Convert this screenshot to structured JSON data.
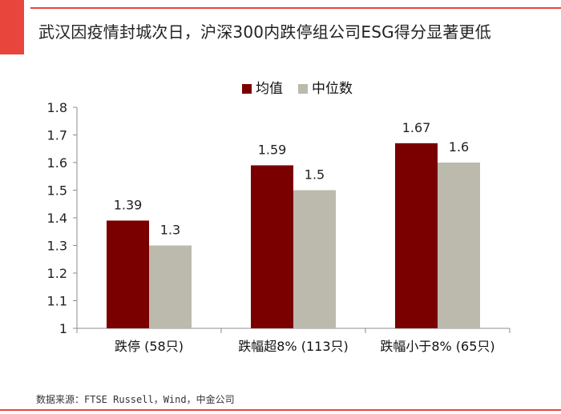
{
  "header": {
    "title": "武汉因疫情封城次日，沪深300内跌停组公司ESG得分显著更低"
  },
  "footer": {
    "source": "数据来源：FTSE Russell，Wind，中金公司"
  },
  "colors": {
    "accent": "#e8453c",
    "series_mean": "#7a0000",
    "series_median": "#bcb9ad"
  },
  "chart_data": {
    "type": "bar",
    "title": "",
    "xlabel": "",
    "ylabel": "",
    "categories": [
      "跌停 (58只)",
      "跌幅超8% (113只)",
      "跌幅小于8% (65只)"
    ],
    "series": [
      {
        "name": "均值",
        "values": [
          1.39,
          1.59,
          1.67
        ],
        "labels": [
          "1.39",
          "1.59",
          "1.67"
        ]
      },
      {
        "name": "中位数",
        "values": [
          1.3,
          1.5,
          1.6
        ],
        "labels": [
          "1.3",
          "1.5",
          "1.6"
        ]
      }
    ],
    "ylim": [
      1,
      1.8
    ],
    "yticks": [
      "1",
      "1.1",
      "1.2",
      "1.3",
      "1.4",
      "1.5",
      "1.6",
      "1.7",
      "1.8"
    ],
    "grid": false,
    "legend_position": "top-center"
  }
}
